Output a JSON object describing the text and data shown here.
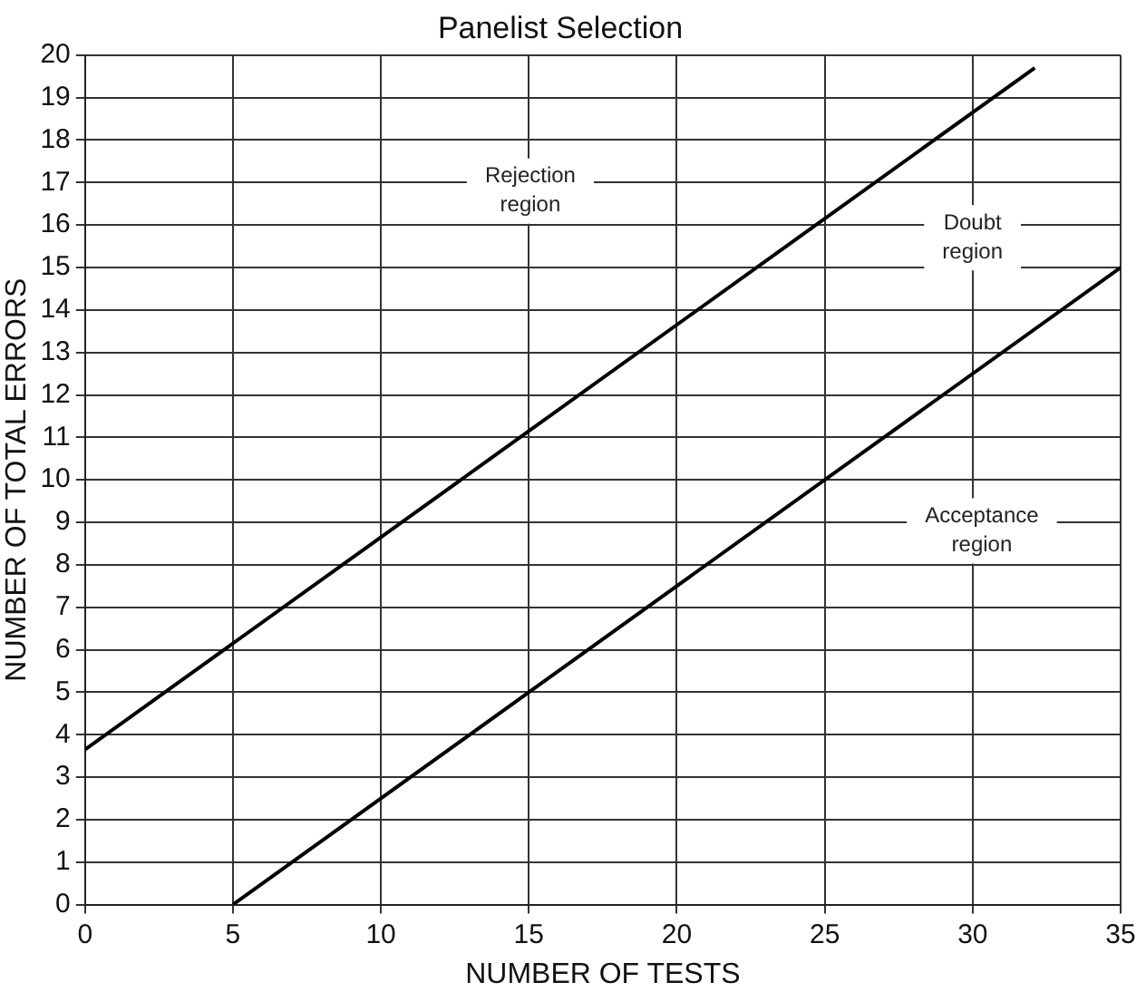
{
  "chart_data": {
    "type": "line",
    "title": "Panelist Selection",
    "xlabel": "NUMBER OF TESTS",
    "ylabel": "NUMBER OF TOTAL ERRORS",
    "xlim": [
      0,
      35
    ],
    "xticks": [
      0,
      5,
      10,
      15,
      20,
      25,
      30,
      35
    ],
    "ylim": [
      0,
      20
    ],
    "yticks": [
      0,
      1,
      2,
      3,
      4,
      5,
      6,
      7,
      8,
      9,
      10,
      11,
      12,
      13,
      14,
      15,
      16,
      17,
      18,
      19,
      20
    ],
    "series": [
      {
        "color": "#000000",
        "x": [
          0,
          32.1
        ],
        "values": [
          3.65,
          19.7
        ]
      },
      {
        "color": "#000000",
        "x": [
          5,
          35
        ],
        "values": [
          0,
          15
        ]
      }
    ],
    "annotations": [
      "Rejection region",
      "Doubt region",
      "Acceptance region"
    ],
    "grid": true,
    "legend": false,
    "marker": "none",
    "line_style": "solid"
  }
}
